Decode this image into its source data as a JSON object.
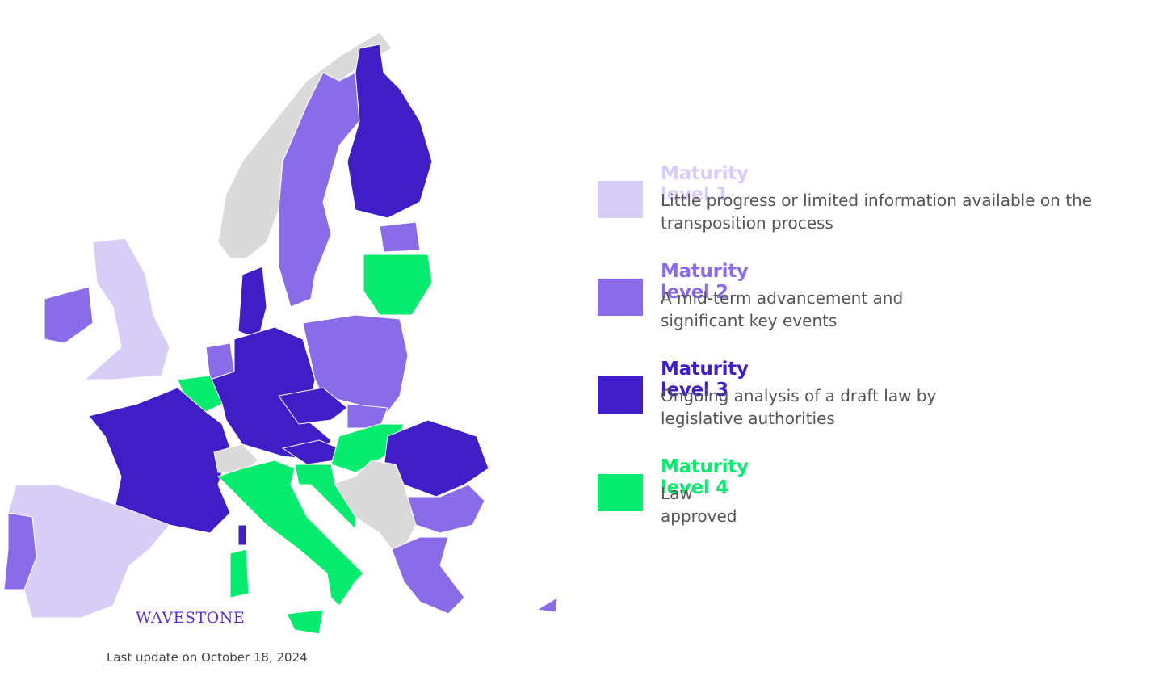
{
  "logo": "WAVESTONE",
  "last_update": "Last update on October 18, 2024",
  "legend": [
    {
      "title": "Maturity level 1",
      "description": "Little progress or limited information available on the transposition process",
      "color": "#d8cdf7"
    },
    {
      "title": "Maturity level 2",
      "description": "A mid-term advancement and significant key events",
      "color": "#8a6ce8"
    },
    {
      "title": "Maturity level 3",
      "description": "Ongoing analysis of a draft law by legislative authorities",
      "color": "#3f1ec8"
    },
    {
      "title": "Maturity level 4",
      "description": "Law approved",
      "color": "#07ec6e"
    }
  ]
}
